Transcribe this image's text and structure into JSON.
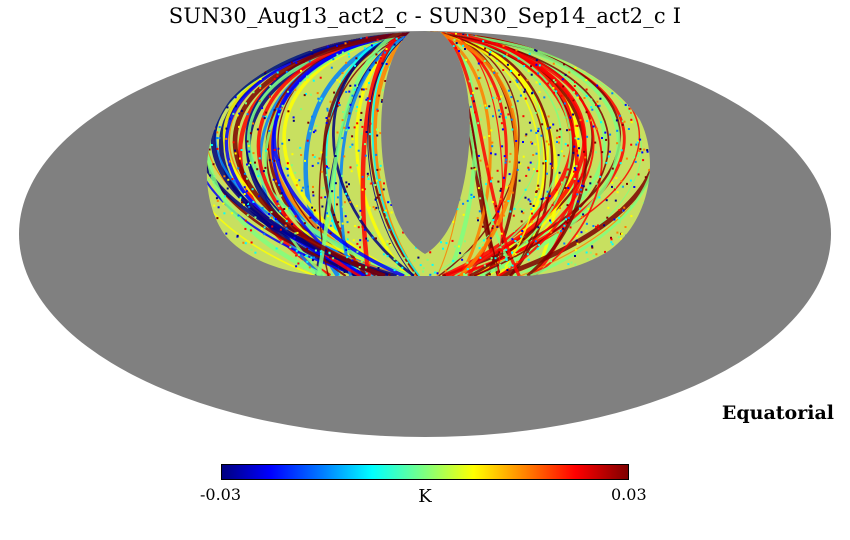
{
  "title": "SUN30_Aug13_act2_c - SUN30_Sep14_act2_c I",
  "projection": "mollweide",
  "coordinate_system": "Equatorial",
  "colorbar": {
    "min_label": "-0.03",
    "max_label": "0.03",
    "unit": "K",
    "colormap": "jet"
  },
  "colors": {
    "background_sky": "#808080",
    "page_background": "#ffffff"
  }
}
